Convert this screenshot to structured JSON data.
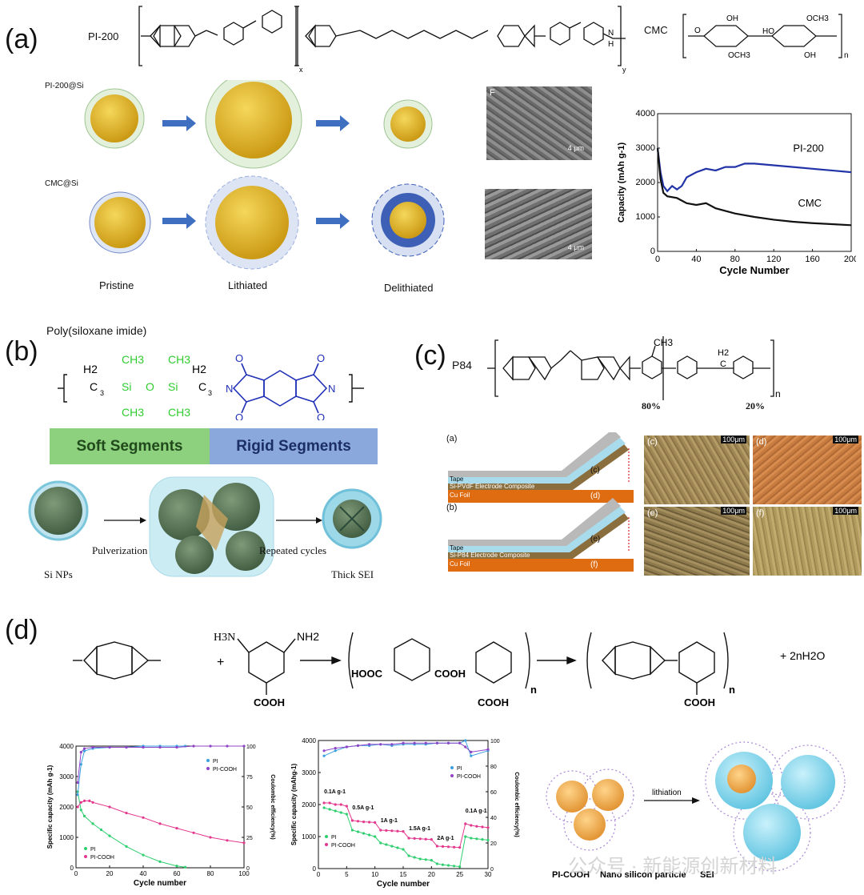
{
  "panel_a": {
    "letter": "(a)",
    "pi_label": "PI-200",
    "cmc_label": "CMC",
    "repeat_x": "x",
    "repeat_y": "y",
    "repeat_n": "n",
    "nh_label": "N",
    "h_label": "H",
    "ch_atoms": {
      "oh": "OH",
      "ho": "HO",
      "och3": "OCH3",
      "o": "O"
    },
    "row1_label": "PI-200@Si",
    "row2_label": "CMC@Si",
    "stages": [
      "Pristine",
      "Lithiated",
      "Delithiated"
    ],
    "sem_scale": "4 μm",
    "sem_letter": "F",
    "colors": {
      "shell_pi": "#dfeed6",
      "core": "#e0b320",
      "arrow": "#3e6fc1",
      "shell_cmc": "#3d5fb6"
    }
  },
  "panel_b": {
    "letter": "(b)",
    "title": "Poly(siloxane imide)",
    "formula": {
      "h2": "H2",
      "c3": "C",
      "sub3": "3",
      "ch3": "CH3",
      "si": "Si",
      "o": "O",
      "n": "N"
    },
    "soft_label": "Soft Segments",
    "rigid_label": "Rigid Segments",
    "colors": {
      "soft": "#8dd07d",
      "rigid": "#8aa8dc",
      "siloxane": "#2fcc2f",
      "imide": "#1f2fb6"
    },
    "stage_labels": [
      "Si NPs",
      "Pulverization",
      "Repeated cycles",
      "Thick SEI"
    ]
  },
  "panel_c": {
    "letter": "(c)",
    "polymer": "P84",
    "ch3": "CH3",
    "h2": "H2",
    "c": "C",
    "n": "n",
    "pct_80": "80%",
    "pct_20": "20%",
    "diagram_a": {
      "letter": "(a)",
      "tape": "Tape",
      "composite": "Si-PVdF Electrode Composite",
      "foil": "Cu Foil",
      "c_label": "(c)",
      "d_label": "(d)"
    },
    "diagram_b": {
      "letter": "(b)",
      "tape": "Tape",
      "composite": "Si-P84 Electrode Composite",
      "foil": "Cu Foil",
      "e_label": "(e)",
      "f_label": "(f)"
    },
    "micrographs": [
      {
        "letter": "(c)",
        "scale": "100μm"
      },
      {
        "letter": "(d)",
        "scale": "100μm"
      },
      {
        "letter": "(e)",
        "scale": "100μm"
      },
      {
        "letter": "(f)",
        "scale": "100μm"
      }
    ]
  },
  "panel_d": {
    "letter": "(d)",
    "reaction": {
      "plus": "+",
      "h3n": "H3N",
      "nh2": "NH2",
      "cooh": "COOH",
      "hooc": "HOOC",
      "n": "n",
      "water": "+ 2nH2O",
      "nh": "N",
      "h": "H",
      "c": "C",
      "o": "O"
    },
    "cartoon": {
      "lithiation": "lithiation",
      "pi_cooh": "PI-COOH",
      "nano": "Nano silicon particle",
      "sei": "SEI"
    },
    "watermark": "公众号 · 新能源创新材料"
  },
  "chart_data": [
    {
      "type": "line",
      "xlabel": "Cycle Number",
      "ylabel": "Capacity (mAh g-1)",
      "xlim": [
        0,
        200
      ],
      "ylim": [
        0,
        4000
      ],
      "xticks": [
        0,
        40,
        80,
        120,
        160,
        200
      ],
      "yticks": [
        0,
        1000,
        2000,
        3000,
        4000
      ],
      "legend": "labels next to lines",
      "series": [
        {
          "name": "PI-200",
          "color": "#2233a8",
          "x": [
            0,
            3,
            6,
            10,
            15,
            20,
            25,
            30,
            40,
            50,
            60,
            70,
            80,
            90,
            100,
            120,
            140,
            160,
            180,
            200
          ],
          "y": [
            3000,
            2300,
            1900,
            1750,
            1900,
            1800,
            1900,
            2150,
            2300,
            2400,
            2350,
            2450,
            2450,
            2550,
            2550,
            2500,
            2450,
            2400,
            2350,
            2300
          ]
        },
        {
          "name": "CMC",
          "color": "#111111",
          "x": [
            0,
            3,
            6,
            10,
            20,
            30,
            40,
            50,
            60,
            80,
            100,
            120,
            140,
            160,
            180,
            200
          ],
          "y": [
            3000,
            2100,
            1700,
            1600,
            1550,
            1400,
            1350,
            1400,
            1250,
            1100,
            1000,
            920,
            860,
            820,
            790,
            760
          ]
        }
      ]
    },
    {
      "type": "line",
      "xlabel": "Cycle number",
      "ylabel": "Specific capacity (mAh g-1)",
      "y2label": "Coulombic efficiency(%)",
      "xlim": [
        0,
        100
      ],
      "ylim": [
        0,
        4000
      ],
      "y2lim": [
        0,
        100
      ],
      "xticks": [
        0,
        20,
        40,
        60,
        80,
        100
      ],
      "yticks": [
        0,
        1000,
        2000,
        3000,
        4000
      ],
      "y2ticks": [
        0,
        25,
        50,
        75,
        100
      ],
      "series": [
        {
          "name": "PI",
          "color": "#2fcf6f",
          "axis": "left",
          "x": [
            1,
            3,
            5,
            10,
            15,
            20,
            30,
            40,
            50,
            60,
            65
          ],
          "y": [
            2500,
            1900,
            1700,
            1450,
            1250,
            1050,
            700,
            420,
            200,
            60,
            20
          ]
        },
        {
          "name": "PI-COOH",
          "color": "#e4388f",
          "axis": "left",
          "x": [
            1,
            3,
            5,
            8,
            10,
            20,
            30,
            40,
            50,
            60,
            70,
            80,
            90,
            100
          ],
          "y": [
            2000,
            2150,
            2200,
            2200,
            2150,
            2000,
            1800,
            1650,
            1450,
            1300,
            1150,
            1000,
            900,
            820
          ]
        },
        {
          "name": "PI",
          "color": "#3aa0e0",
          "axis": "right",
          "x": [
            1,
            3,
            5,
            10,
            20,
            30,
            40,
            50,
            60,
            65
          ],
          "y": [
            60,
            85,
            96,
            98,
            99,
            99,
            100,
            100,
            100,
            100
          ]
        },
        {
          "name": "PI-COOH",
          "color": "#8e44c7",
          "axis": "right",
          "x": [
            1,
            3,
            5,
            10,
            20,
            30,
            40,
            50,
            60,
            70,
            80,
            90,
            100
          ],
          "y": [
            70,
            95,
            98,
            99,
            99,
            99,
            99,
            99,
            99,
            100,
            100,
            100,
            100
          ]
        }
      ]
    },
    {
      "type": "line",
      "xlabel": "Cycle number",
      "ylabel": "Specific capacity (mAhg-1)",
      "y2label": "Coulombic efficiency(%)",
      "xlim": [
        0,
        30
      ],
      "ylim": [
        0,
        4000
      ],
      "y2lim": [
        0,
        100
      ],
      "xticks": [
        0,
        5,
        10,
        15,
        20,
        25,
        30
      ],
      "yticks": [
        0,
        1000,
        2000,
        3000,
        4000
      ],
      "y2ticks": [
        0,
        20,
        40,
        60,
        80,
        100
      ],
      "annotations": [
        "0.1A g-1",
        "0.5A g-1",
        "1A g-1",
        "1.5A g-1",
        "2A g-1",
        "0.1A g-1"
      ],
      "series": [
        {
          "name": "PI",
          "color": "#2fcf6f",
          "axis": "left",
          "x": [
            1,
            2,
            3,
            4,
            5,
            6,
            7,
            8,
            9,
            10,
            11,
            12,
            13,
            14,
            15,
            16,
            17,
            18,
            19,
            20,
            21,
            22,
            23,
            24,
            25,
            26,
            27,
            28,
            29,
            30
          ],
          "y": [
            1900,
            1850,
            1800,
            1750,
            1700,
            1200,
            1150,
            1100,
            1050,
            1000,
            800,
            750,
            700,
            650,
            600,
            400,
            350,
            300,
            280,
            260,
            150,
            120,
            100,
            80,
            60,
            1000,
            950,
            930,
            910,
            890
          ]
        },
        {
          "name": "PI-COOH",
          "color": "#e4388f",
          "axis": "left",
          "x": [
            1,
            2,
            3,
            4,
            5,
            6,
            7,
            8,
            9,
            10,
            11,
            12,
            13,
            14,
            15,
            16,
            17,
            18,
            19,
            20,
            21,
            22,
            23,
            24,
            25,
            26,
            27,
            28,
            29,
            30
          ],
          "y": [
            2050,
            2050,
            2000,
            2000,
            1950,
            1500,
            1480,
            1460,
            1450,
            1440,
            1200,
            1190,
            1180,
            1170,
            1160,
            950,
            940,
            930,
            920,
            910,
            700,
            690,
            680,
            670,
            660,
            1400,
            1350,
            1320,
            1300,
            1280
          ]
        },
        {
          "name": "PI",
          "color": "#3aa0e0",
          "axis": "right",
          "x": [
            1,
            3,
            5,
            7,
            9,
            11,
            13,
            15,
            17,
            19,
            21,
            23,
            25,
            26,
            27,
            30
          ],
          "y": [
            88,
            92,
            95,
            96,
            96,
            97,
            96,
            97,
            97,
            97,
            98,
            98,
            98,
            100,
            88,
            92
          ]
        },
        {
          "name": "PI-COOH",
          "color": "#8e44c7",
          "axis": "right",
          "x": [
            1,
            3,
            5,
            7,
            9,
            11,
            13,
            15,
            17,
            19,
            21,
            23,
            25,
            26,
            27,
            30
          ],
          "y": [
            92,
            94,
            95,
            96,
            97,
            97,
            97,
            98,
            98,
            98,
            98,
            98,
            98,
            95,
            91,
            93
          ]
        }
      ]
    }
  ]
}
